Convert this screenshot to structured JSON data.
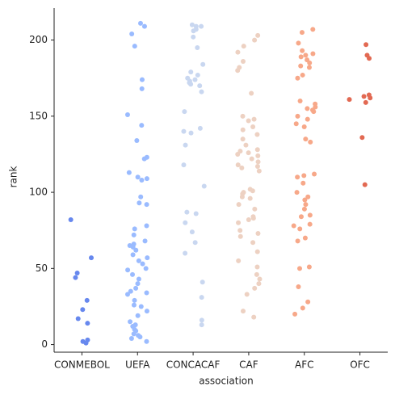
{
  "chart_data": {
    "type": "strip",
    "x_label": "association",
    "y_label": "rank",
    "ylim": [
      -5,
      221
    ],
    "yticks": [
      0,
      50,
      100,
      150,
      200
    ],
    "series": [
      {
        "name": "CONMEBOL",
        "color": "#6788ee",
        "values": [
          82,
          57,
          47,
          44,
          29,
          23,
          17,
          14,
          3,
          2,
          1
        ]
      },
      {
        "name": "UEFA",
        "color": "#9abbff",
        "values": [
          211,
          209,
          204,
          196,
          174,
          168,
          151,
          144,
          134,
          123,
          122,
          113,
          110,
          109,
          108,
          97,
          93,
          92,
          78,
          76,
          72,
          68,
          66,
          65,
          64,
          62,
          59,
          57,
          55,
          53,
          50,
          49,
          46,
          43,
          40,
          37,
          35,
          34,
          33,
          29,
          26,
          25,
          22,
          19,
          15,
          13,
          12,
          10,
          9,
          7,
          6,
          5,
          4,
          2
        ]
      },
      {
        "name": "CONCACAF",
        "color": "#c9d7f0",
        "values": [
          210,
          209,
          209,
          207,
          206,
          202,
          195,
          184,
          179,
          177,
          175,
          174,
          173,
          172,
          171,
          170,
          166,
          153,
          142,
          140,
          139,
          131,
          118,
          104,
          87,
          86,
          80,
          74,
          67,
          60,
          41,
          31,
          16,
          13
        ]
      },
      {
        "name": "CAF",
        "color": "#edd1c2",
        "values": [
          203,
          200,
          196,
          192,
          186,
          182,
          180,
          165,
          150,
          148,
          147,
          143,
          141,
          138,
          135,
          131,
          128,
          127,
          126,
          125,
          124,
          122,
          120,
          118,
          117,
          116,
          114,
          102,
          101,
          100,
          99,
          97,
          96,
          92,
          89,
          84,
          83,
          82,
          80,
          75,
          73,
          71,
          67,
          61,
          55,
          51,
          46,
          43,
          40,
          37,
          33,
          22,
          18
        ]
      },
      {
        "name": "AFC",
        "color": "#f7a889",
        "values": [
          207,
          205,
          198,
          193,
          191,
          190,
          189,
          187,
          185,
          183,
          182,
          177,
          175,
          160,
          158,
          156,
          155,
          154,
          153,
          150,
          148,
          145,
          143,
          135,
          133,
          112,
          111,
          110,
          106,
          100,
          97,
          95,
          92,
          89,
          85,
          84,
          79,
          78,
          76,
          70,
          68,
          51,
          50,
          38,
          28,
          24,
          20
        ]
      },
      {
        "name": "OFC",
        "color": "#e26952",
        "values": [
          197,
          190,
          188,
          164,
          163,
          162,
          161,
          159,
          136,
          105
        ]
      }
    ]
  }
}
